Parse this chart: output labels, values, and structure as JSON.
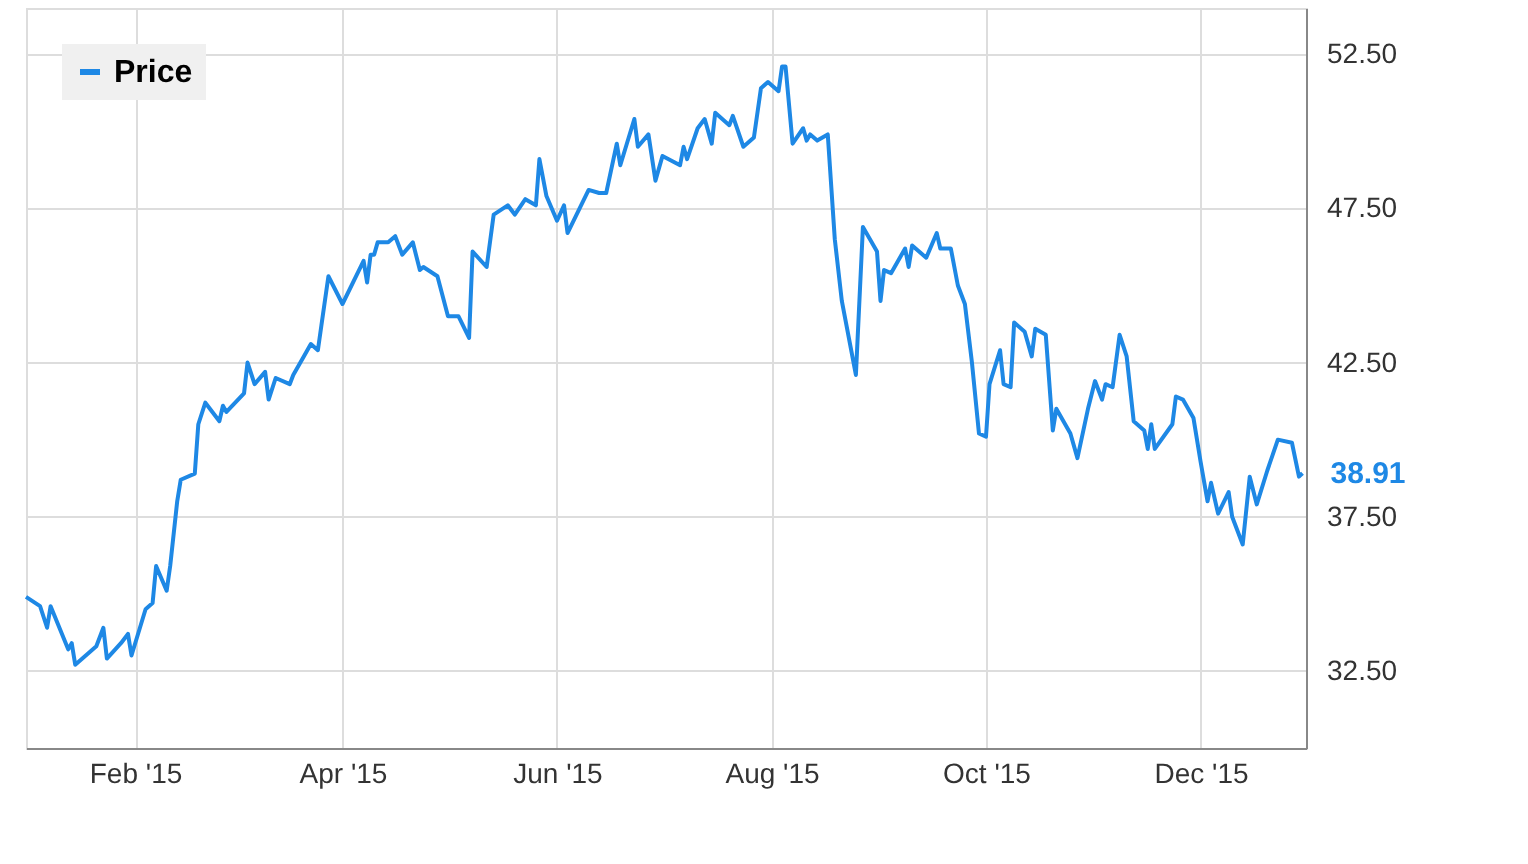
{
  "chart_data": {
    "type": "line",
    "x": [
      "2015-01-01",
      "2015-01-05",
      "2015-01-07",
      "2015-01-08",
      "2015-01-13",
      "2015-01-14",
      "2015-01-15",
      "2015-01-21",
      "2015-01-23",
      "2015-01-24",
      "2015-01-28",
      "2015-01-30",
      "2015-01-31",
      "2015-02-04",
      "2015-02-06",
      "2015-02-07",
      "2015-02-10",
      "2015-02-11",
      "2015-02-13",
      "2015-02-14",
      "2015-02-18",
      "2015-02-19",
      "2015-02-21",
      "2015-02-25",
      "2015-02-26",
      "2015-02-27",
      "2015-03-04",
      "2015-03-05",
      "2015-03-07",
      "2015-03-10",
      "2015-03-11",
      "2015-03-13",
      "2015-03-17",
      "2015-03-18",
      "2015-03-21",
      "2015-03-23",
      "2015-03-25",
      "2015-03-26",
      "2015-03-28",
      "2015-04-01",
      "2015-04-07",
      "2015-04-08",
      "2015-04-09",
      "2015-04-10",
      "2015-04-11",
      "2015-04-14",
      "2015-04-16",
      "2015-04-18",
      "2015-04-21",
      "2015-04-23",
      "2015-04-24",
      "2015-04-28",
      "2015-05-01",
      "2015-05-04",
      "2015-05-07",
      "2015-05-08",
      "2015-05-12",
      "2015-05-14",
      "2015-05-18",
      "2015-05-20",
      "2015-05-23",
      "2015-05-26",
      "2015-05-27",
      "2015-05-29",
      "2015-06-01",
      "2015-06-03",
      "2015-06-04",
      "2015-06-10",
      "2015-06-13",
      "2015-06-15",
      "2015-06-18",
      "2015-06-19",
      "2015-06-23",
      "2015-06-24",
      "2015-06-27",
      "2015-06-29",
      "2015-07-01",
      "2015-07-06",
      "2015-07-07",
      "2015-07-08",
      "2015-07-11",
      "2015-07-13",
      "2015-07-15",
      "2015-07-16",
      "2015-07-20",
      "2015-07-21",
      "2015-07-24",
      "2015-07-27",
      "2015-07-29",
      "2015-07-31",
      "2015-08-03",
      "2015-08-04",
      "2015-08-05",
      "2015-08-07",
      "2015-08-10",
      "2015-08-11",
      "2015-08-12",
      "2015-08-14",
      "2015-08-17",
      "2015-08-19",
      "2015-08-21",
      "2015-08-25",
      "2015-08-27",
      "2015-08-31",
      "2015-09-01",
      "2015-09-02",
      "2015-09-04",
      "2015-09-08",
      "2015-09-09",
      "2015-09-10",
      "2015-09-14",
      "2015-09-17",
      "2015-09-18",
      "2015-09-21",
      "2015-09-23",
      "2015-09-25",
      "2015-09-27",
      "2015-09-29",
      "2015-10-01",
      "2015-10-02",
      "2015-10-05",
      "2015-10-06",
      "2015-10-08",
      "2015-10-09",
      "2015-10-12",
      "2015-10-14",
      "2015-10-15",
      "2015-10-18",
      "2015-10-20",
      "2015-10-21",
      "2015-10-25",
      "2015-10-27",
      "2015-10-30",
      "2015-11-01",
      "2015-11-03",
      "2015-11-04",
      "2015-11-06",
      "2015-11-08",
      "2015-11-10",
      "2015-11-12",
      "2015-11-15",
      "2015-11-16",
      "2015-11-17",
      "2015-11-18",
      "2015-11-23",
      "2015-11-24",
      "2015-11-26",
      "2015-11-29",
      "2015-12-01",
      "2015-12-03",
      "2015-12-04",
      "2015-12-06",
      "2015-12-09",
      "2015-12-10",
      "2015-12-13",
      "2015-12-15",
      "2015-12-17",
      "2015-12-20",
      "2015-12-23",
      "2015-12-27",
      "2015-12-29",
      "2015-12-30"
    ],
    "series": [
      {
        "name": "Price",
        "color": "#1e88e5",
        "values": [
          34.9,
          34.6,
          33.9,
          34.6,
          33.2,
          33.4,
          32.7,
          33.3,
          33.9,
          32.9,
          33.4,
          33.7,
          33.0,
          34.5,
          34.7,
          35.9,
          35.1,
          35.9,
          38.0,
          38.7,
          38.9,
          40.5,
          41.2,
          40.6,
          41.1,
          40.9,
          41.5,
          42.5,
          41.8,
          42.2,
          41.3,
          42.0,
          41.8,
          42.1,
          42.7,
          43.1,
          42.9,
          43.7,
          45.3,
          44.4,
          45.8,
          45.1,
          46.0,
          46.0,
          46.4,
          46.4,
          46.6,
          46.0,
          46.4,
          45.5,
          45.6,
          45.3,
          44.0,
          44.0,
          43.3,
          46.1,
          45.6,
          47.3,
          47.6,
          47.3,
          47.8,
          47.6,
          49.1,
          47.9,
          47.1,
          47.6,
          46.7,
          48.1,
          48.0,
          48.0,
          49.6,
          48.9,
          50.4,
          49.5,
          49.9,
          48.4,
          49.2,
          48.9,
          49.5,
          49.1,
          50.1,
          50.4,
          49.6,
          50.6,
          50.2,
          50.5,
          49.5,
          49.8,
          51.4,
          51.6,
          51.3,
          52.1,
          52.1,
          49.6,
          50.1,
          49.7,
          49.9,
          49.7,
          49.9,
          46.5,
          44.5,
          42.1,
          46.9,
          46.1,
          44.5,
          45.5,
          45.4,
          46.2,
          45.6,
          46.3,
          45.9,
          46.7,
          46.2,
          46.2,
          45.0,
          44.4,
          42.5,
          40.2,
          40.1,
          41.8,
          42.9,
          41.8,
          41.7,
          43.8,
          43.5,
          42.7,
          43.6,
          43.4,
          40.3,
          41.0,
          40.2,
          39.4,
          41.0,
          41.9,
          41.3,
          41.8,
          41.7,
          43.4,
          42.7,
          40.6,
          40.3,
          39.7,
          40.5,
          39.7,
          40.5,
          41.4,
          41.3,
          40.7,
          39.3,
          38.0,
          38.6,
          37.6,
          38.3,
          37.5,
          36.6,
          38.8,
          37.9,
          39.0,
          40.0,
          39.9,
          38.8,
          38.91
        ]
      }
    ],
    "xlim": [
      "2015-01-01",
      "2015-12-31"
    ],
    "xticks": [
      {
        "value": "2015-02-01",
        "label": "Feb '15"
      },
      {
        "value": "2015-04-01",
        "label": "Apr '15"
      },
      {
        "value": "2015-06-01",
        "label": "Jun '15"
      },
      {
        "value": "2015-08-01",
        "label": "Aug '15"
      },
      {
        "value": "2015-10-01",
        "label": "Oct '15"
      },
      {
        "value": "2015-12-01",
        "label": "Dec '15"
      }
    ],
    "ylim": [
      30,
      54
    ],
    "yticks": [
      {
        "value": 32.5,
        "label": "32.50"
      },
      {
        "value": 37.5,
        "label": "37.50"
      },
      {
        "value": 42.5,
        "label": "42.50"
      },
      {
        "value": 47.5,
        "label": "47.50"
      },
      {
        "value": 52.5,
        "label": "52.50"
      }
    ],
    "annotations": [
      {
        "text": "38.91",
        "x": "2015-12-30",
        "y": 38.91
      }
    ],
    "grid": true,
    "legend": "top left",
    "marker": "none",
    "line_style": "solid"
  }
}
